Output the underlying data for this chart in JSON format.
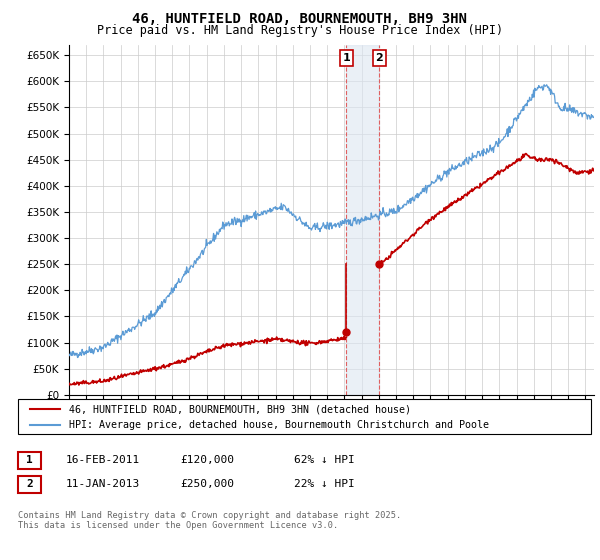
{
  "title": "46, HUNTFIELD ROAD, BOURNEMOUTH, BH9 3HN",
  "subtitle": "Price paid vs. HM Land Registry's House Price Index (HPI)",
  "ylim": [
    0,
    670000
  ],
  "yticks": [
    0,
    50000,
    100000,
    150000,
    200000,
    250000,
    300000,
    350000,
    400000,
    450000,
    500000,
    550000,
    600000,
    650000
  ],
  "ytick_labels": [
    "£0",
    "£50K",
    "£100K",
    "£150K",
    "£200K",
    "£250K",
    "£300K",
    "£350K",
    "£400K",
    "£450K",
    "£500K",
    "£550K",
    "£600K",
    "£650K"
  ],
  "hpi_color": "#5b9bd5",
  "price_color": "#c00000",
  "sale1_date_num": 2011.12,
  "sale1_price": 120000,
  "sale2_date_num": 2013.03,
  "sale2_price": 250000,
  "shade_color": "#dce6f1",
  "vline_color": "#e06060",
  "legend_entry1": "46, HUNTFIELD ROAD, BOURNEMOUTH, BH9 3HN (detached house)",
  "legend_entry2": "HPI: Average price, detached house, Bournemouth Christchurch and Poole",
  "annotation1_date": "16-FEB-2011",
  "annotation1_price": "£120,000",
  "annotation1_hpi": "62% ↓ HPI",
  "annotation2_date": "11-JAN-2013",
  "annotation2_price": "£250,000",
  "annotation2_hpi": "22% ↓ HPI",
  "footer": "Contains HM Land Registry data © Crown copyright and database right 2025.\nThis data is licensed under the Open Government Licence v3.0.",
  "bg_color": "#ffffff",
  "grid_color": "#cccccc"
}
